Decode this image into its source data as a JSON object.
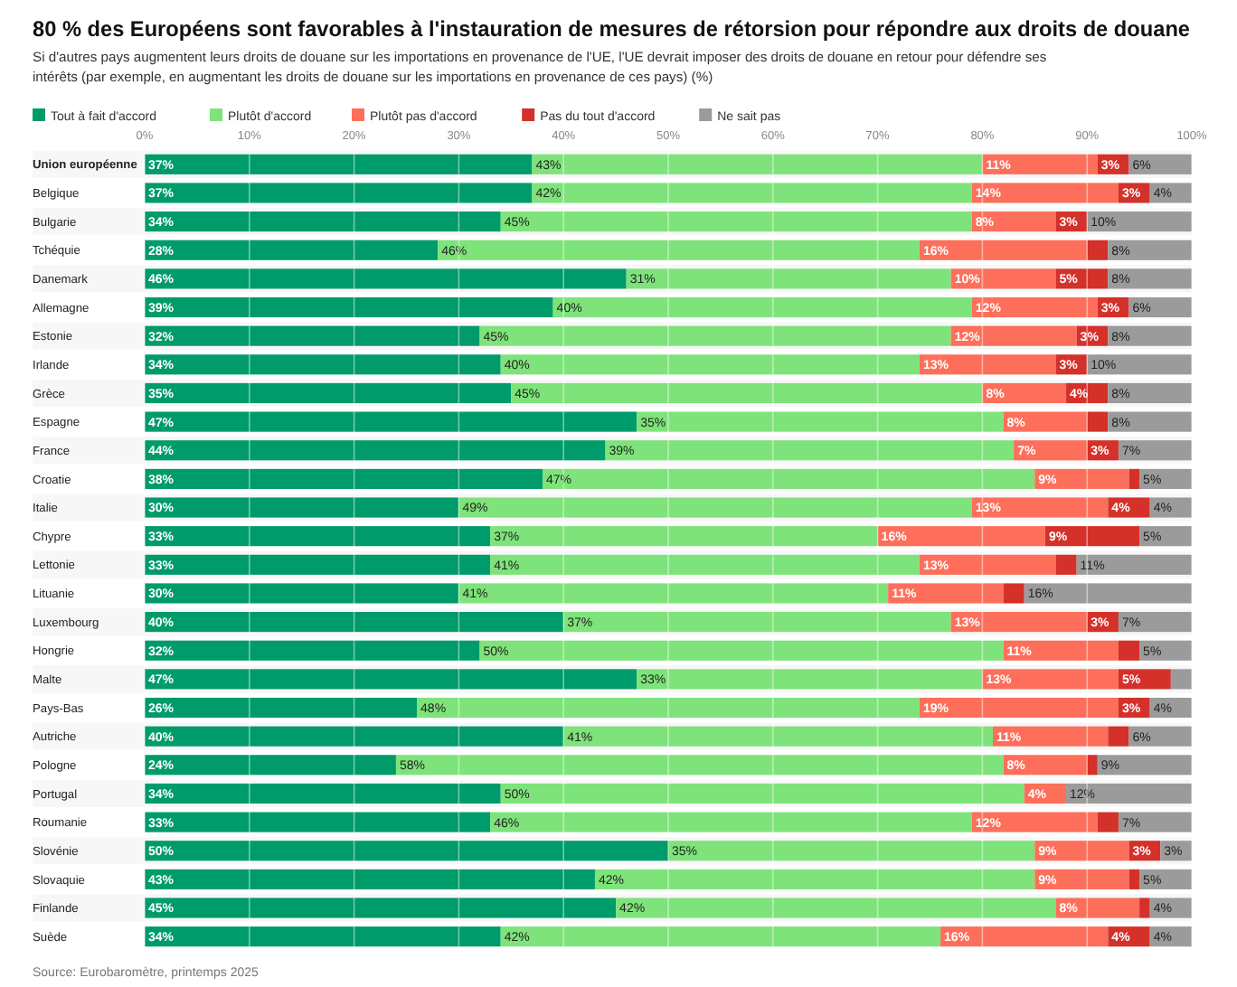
{
  "chart_data": {
    "type": "bar",
    "orientation": "horizontal",
    "stacked": true,
    "title": "80 % des Européens sont favorables à l'instauration de mesures de rétorsion pour répondre aux droits de douane",
    "subtitle": "Si d'autres pays augmentent leurs droits de douane sur les importations en provenance de l'UE, l'UE devrait imposer des droits de douane en retour pour défendre ses intérêts (par exemple, en augmentant les droits de douane sur les importations en provenance de ces pays) (%)",
    "annotations": [
      "Source: Eurobaromètre, printemps 2025"
    ],
    "legend": "top left",
    "grid": "x",
    "xlim": [
      0,
      100
    ],
    "xticks": [
      {
        "value": 0,
        "label": "0%"
      },
      {
        "value": 10,
        "label": "10%"
      },
      {
        "value": 20,
        "label": "20%"
      },
      {
        "value": 30,
        "label": "30%"
      },
      {
        "value": 40,
        "label": "40%"
      },
      {
        "value": 50,
        "label": "50%"
      },
      {
        "value": 60,
        "label": "60%"
      },
      {
        "value": 70,
        "label": "70%"
      },
      {
        "value": 80,
        "label": "80%"
      },
      {
        "value": 90,
        "label": "90%"
      },
      {
        "value": 100,
        "label": "100%"
      }
    ],
    "categories": [
      "Union européenne",
      "Belgique",
      "Bulgarie",
      "Tchéquie",
      "Danemark",
      "Allemagne",
      "Estonie",
      "Irlande",
      "Grèce",
      "Espagne",
      "France",
      "Croatie",
      "Italie",
      "Chypre",
      "Lettonie",
      "Lituanie",
      "Luxembourg",
      "Hongrie",
      "Malte",
      "Pays-Bas",
      "Autriche",
      "Pologne",
      "Portugal",
      "Roumanie",
      "Slovénie",
      "Slovaquie",
      "Finlande",
      "Suède"
    ],
    "series": [
      {
        "name": "Tout à fait d'accord",
        "color": "#009b6b",
        "values": [
          37,
          37,
          34,
          28,
          46,
          39,
          32,
          34,
          35,
          47,
          44,
          38,
          30,
          33,
          33,
          30,
          40,
          32,
          47,
          26,
          40,
          24,
          34,
          33,
          50,
          43,
          45,
          34
        ],
        "value_labels": [
          "37%",
          "37%",
          "34%",
          "28%",
          "46%",
          "39%",
          "32%",
          "34%",
          "35%",
          "47%",
          "44%",
          "38%",
          "30%",
          "33%",
          "33%",
          "30%",
          "40%",
          "32%",
          "47%",
          "26%",
          "40%",
          "24%",
          "34%",
          "33%",
          "50%",
          "43%",
          "45%",
          "34%"
        ]
      },
      {
        "name": "Plutôt d'accord",
        "color": "#7ee37a",
        "values": [
          43,
          42,
          45,
          46,
          31,
          40,
          45,
          40,
          45,
          35,
          39,
          47,
          49,
          37,
          41,
          41,
          37,
          50,
          33,
          48,
          41,
          58,
          50,
          46,
          35,
          42,
          42,
          42
        ],
        "value_labels": [
          "43%",
          "42%",
          "45%",
          "46%",
          "31%",
          "40%",
          "45%",
          "40%",
          "45%",
          "35%",
          "39%",
          "47%",
          "49%",
          "37%",
          "41%",
          "41%",
          "37%",
          "50%",
          "33%",
          "48%",
          "41%",
          "58%",
          "50%",
          "46%",
          "35%",
          "42%",
          "42%",
          "42%"
        ]
      },
      {
        "name": "Plutôt pas d'accord",
        "color": "#fd6f5b",
        "values": [
          11,
          14,
          8,
          16,
          10,
          12,
          12,
          13,
          8,
          8,
          7,
          9,
          13,
          16,
          13,
          11,
          13,
          11,
          13,
          19,
          11,
          8,
          4,
          12,
          9,
          9,
          8,
          16
        ],
        "value_labels": [
          "11%",
          "14%",
          "8%",
          "16%",
          "10%",
          "12%",
          "12%",
          "13%",
          "8%",
          "8%",
          "7%",
          "9%",
          "13%",
          "16%",
          "13%",
          "11%",
          "13%",
          "11%",
          "13%",
          "19%",
          "11%",
          "8%",
          "4%",
          "12%",
          "9%",
          "9%",
          "8%",
          "16%"
        ]
      },
      {
        "name": "Pas du tout d'accord",
        "color": "#d3312a",
        "values": [
          3,
          3,
          3,
          2,
          5,
          3,
          3,
          3,
          4,
          2,
          3,
          1,
          4,
          9,
          2,
          2,
          3,
          2,
          5,
          3,
          2,
          1,
          0,
          2,
          3,
          1,
          1,
          4
        ],
        "value_labels": [
          "3%",
          "3%",
          "3%",
          null,
          "5%",
          "3%",
          "3%",
          "3%",
          "4%",
          null,
          "3%",
          null,
          "4%",
          "9%",
          null,
          null,
          "3%",
          null,
          "5%",
          "3%",
          null,
          null,
          null,
          null,
          "3%",
          null,
          null,
          "4%"
        ]
      },
      {
        "name": "Ne sait pas",
        "color": "#9b9b9b",
        "values": [
          6,
          4,
          10,
          8,
          8,
          6,
          8,
          10,
          8,
          8,
          7,
          5,
          4,
          5,
          11,
          16,
          7,
          5,
          2,
          4,
          6,
          9,
          12,
          7,
          3,
          5,
          4,
          4
        ],
        "value_labels": [
          "6%",
          "4%",
          "10%",
          "8%",
          "8%",
          "6%",
          "8%",
          "10%",
          "8%",
          "8%",
          "7%",
          "5%",
          "4%",
          "5%",
          "11%",
          "16%",
          "7%",
          "5%",
          null,
          "4%",
          "6%",
          "9%",
          "12%",
          "7%",
          "3%",
          "5%",
          "4%",
          "4%"
        ]
      }
    ]
  }
}
